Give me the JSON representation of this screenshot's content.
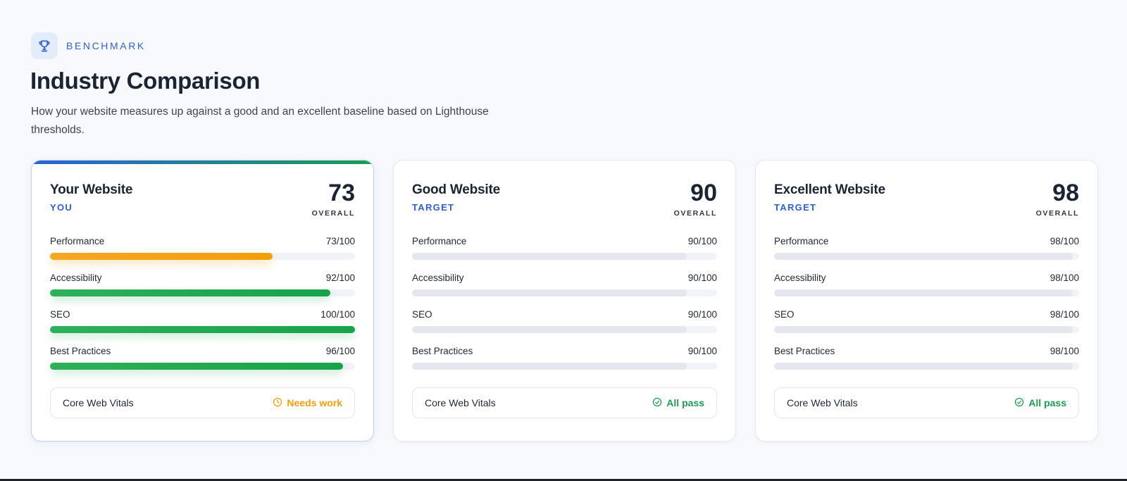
{
  "header": {
    "eyebrow": "BENCHMARK",
    "eyebrow_icon": "trophy-icon",
    "title": "Industry Comparison",
    "subtitle": "How your website measures up against a good and an excellent baseline based on Lighthouse thresholds."
  },
  "colors": {
    "accent": "#2f5fd7",
    "warn": "#f59e0b",
    "ok": "#16a34a",
    "track": "#f0f3f7",
    "target_fill": "#e4e8ee"
  },
  "cards": [
    {
      "name": "Your Website",
      "tag": "YOU",
      "score": "73",
      "score_label": "OVERALL",
      "metrics": [
        {
          "label": "Performance",
          "value": "73/100",
          "percent": 73
        },
        {
          "label": "Accessibility",
          "value": "92/100",
          "percent": 92
        },
        {
          "label": "SEO",
          "value": "100/100",
          "percent": 100
        },
        {
          "label": "Best Practices",
          "value": "96/100",
          "percent": 96
        }
      ],
      "cwv_label": "Core Web Vitals",
      "cwv_status": "Needs work",
      "cwv_icon": "clock-icon"
    },
    {
      "name": "Good Website",
      "tag": "TARGET",
      "score": "90",
      "score_label": "OVERALL",
      "metrics": [
        {
          "label": "Performance",
          "value": "90/100",
          "percent": 90
        },
        {
          "label": "Accessibility",
          "value": "90/100",
          "percent": 90
        },
        {
          "label": "SEO",
          "value": "90/100",
          "percent": 90
        },
        {
          "label": "Best Practices",
          "value": "90/100",
          "percent": 90
        }
      ],
      "cwv_label": "Core Web Vitals",
      "cwv_status": "All pass",
      "cwv_icon": "check-circle-icon"
    },
    {
      "name": "Excellent Website",
      "tag": "TARGET",
      "score": "98",
      "score_label": "OVERALL",
      "metrics": [
        {
          "label": "Performance",
          "value": "98/100",
          "percent": 98
        },
        {
          "label": "Accessibility",
          "value": "98/100",
          "percent": 98
        },
        {
          "label": "SEO",
          "value": "98/100",
          "percent": 98
        },
        {
          "label": "Best Practices",
          "value": "98/100",
          "percent": 98
        }
      ],
      "cwv_label": "Core Web Vitals",
      "cwv_status": "All pass",
      "cwv_icon": "check-circle-icon"
    }
  ]
}
